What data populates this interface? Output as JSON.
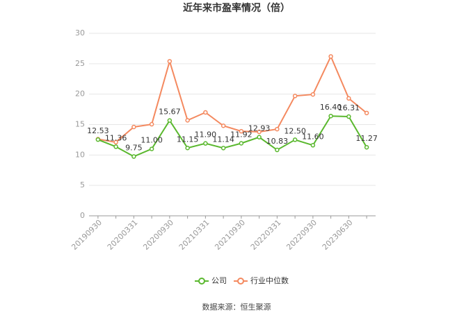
{
  "chart_data": {
    "type": "line",
    "title": "近年来市盈率情况（倍）",
    "categories": [
      "20190930",
      null,
      "20200331",
      null,
      "20200930",
      null,
      "20210331",
      null,
      "20210930",
      null,
      "20220331",
      null,
      "20220930",
      null,
      "20230630",
      null
    ],
    "series": [
      {
        "name": "公司",
        "color": "#5ab82e",
        "values": [
          12.53,
          11.36,
          9.75,
          11.0,
          15.67,
          11.15,
          11.9,
          11.14,
          11.92,
          12.93,
          10.83,
          12.5,
          11.6,
          16.4,
          16.31,
          11.27
        ],
        "value_labels": [
          "12.53",
          "11.36",
          "9.75",
          "11.00",
          "15.67",
          "11.15",
          "11.90",
          "11.14",
          "11.92",
          "12.93",
          "10.83",
          "12.50",
          "11.60",
          "16.40",
          "16.31",
          "11.27"
        ]
      },
      {
        "name": "行业中位数",
        "color": "#f4895f",
        "values": [
          12.6,
          12.1,
          14.6,
          15.05,
          25.4,
          15.7,
          17.0,
          14.8,
          13.9,
          13.8,
          14.25,
          19.7,
          19.95,
          26.2,
          19.3,
          16.9
        ]
      }
    ],
    "ylim": [
      0,
      30
    ],
    "yticks": [
      0,
      5,
      10,
      15,
      20,
      25,
      30
    ],
    "grid": true,
    "legend": "bottom",
    "source": "数据来源：恒生聚源"
  }
}
